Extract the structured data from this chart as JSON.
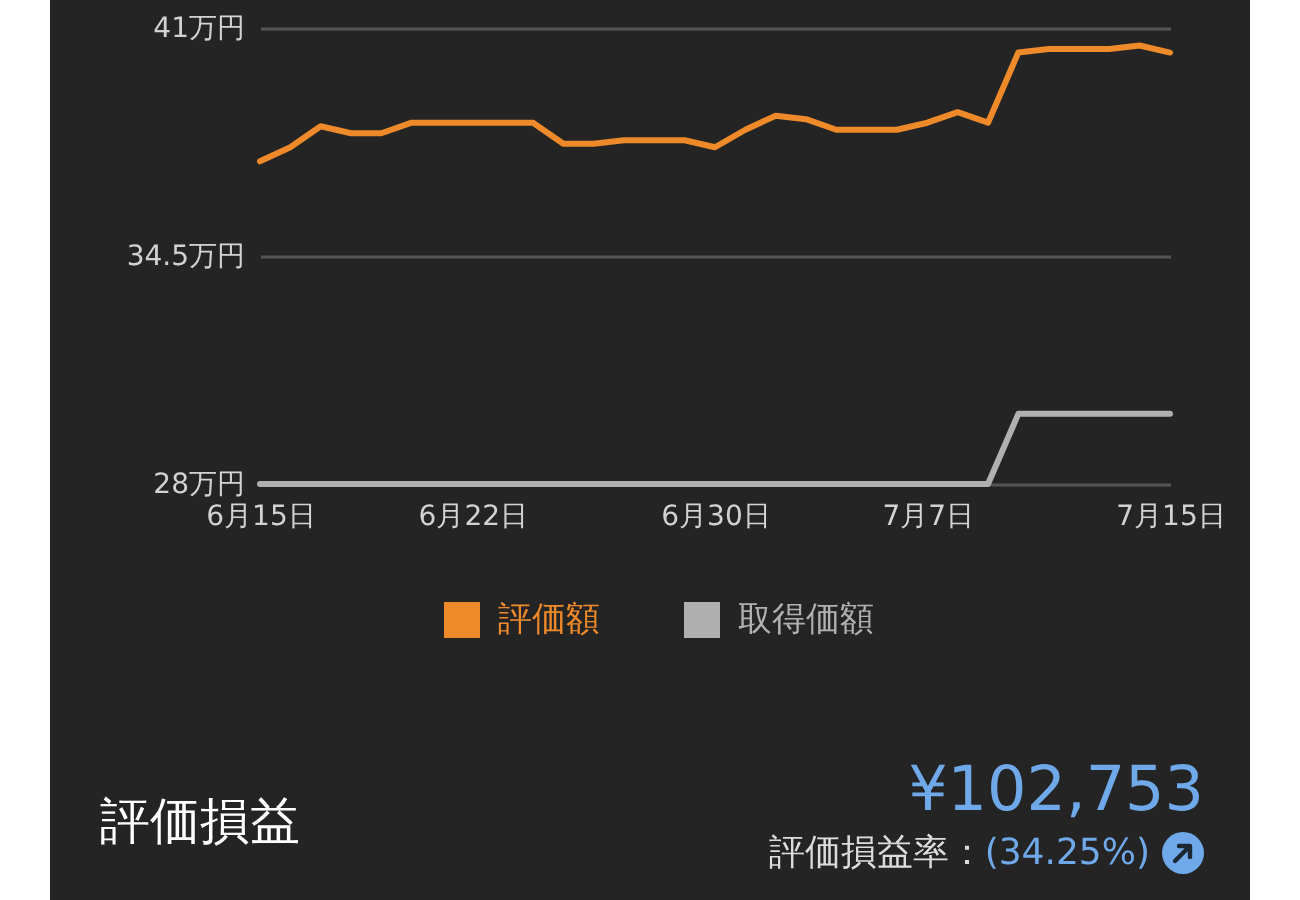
{
  "chart_data": {
    "type": "line",
    "x": [
      "--06-15",
      "--06-16",
      "--06-17",
      "--06-18",
      "--06-19",
      "--06-20",
      "--06-21",
      "--06-22",
      "--06-23",
      "--06-24",
      "--06-25",
      "--06-26",
      "--06-27",
      "--06-28",
      "--06-29",
      "--06-30",
      "--07-01",
      "--07-02",
      "--07-03",
      "--07-04",
      "--07-05",
      "--07-06",
      "--07-07",
      "--07-08",
      "--07-09",
      "--07-10",
      "--07-11",
      "--07-12",
      "--07-13",
      "--07-14",
      "--07-15"
    ],
    "series": [
      {
        "name": "評価額",
        "color": "#ef8a2a",
        "values": [
          37.2,
          37.6,
          38.2,
          38.0,
          38.0,
          38.3,
          38.3,
          38.3,
          38.3,
          38.3,
          37.7,
          37.7,
          37.8,
          37.8,
          37.8,
          37.6,
          38.1,
          38.5,
          38.4,
          38.1,
          38.1,
          38.1,
          38.3,
          38.6,
          38.3,
          40.3,
          40.4,
          40.4,
          40.4,
          40.5,
          40.3
        ]
      },
      {
        "name": "取得価額",
        "color": "#b0b0b0",
        "values": [
          28,
          28,
          28,
          28,
          28,
          28,
          28,
          28,
          28,
          28,
          28,
          28,
          28,
          28,
          28,
          28,
          28,
          28,
          28,
          28,
          28,
          28,
          28,
          28,
          28,
          30,
          30,
          30,
          30,
          30,
          30
        ]
      }
    ],
    "xlim": [
      "--06-15",
      "--07-15"
    ],
    "xticks": [
      {
        "value": "--06-15",
        "label": "6月15日"
      },
      {
        "value": "--06-22",
        "label": "6月22日"
      },
      {
        "value": "--06-30",
        "label": "6月30日"
      },
      {
        "value": "--07-07",
        "label": "7月7日"
      },
      {
        "value": "--07-15",
        "label": "7月15日"
      }
    ],
    "ylim": [
      28,
      41
    ],
    "yticks": [
      {
        "value": 28,
        "label": "28万円"
      },
      {
        "value": 34.5,
        "label": "34.5万円"
      },
      {
        "value": 41,
        "label": "41万円"
      }
    ],
    "grid": "y",
    "legend": "bottom",
    "marker": "none",
    "line_style": "solid",
    "annotations": [
      "評価損益",
      "¥102,753",
      "評価損益率：",
      "(34.25%)"
    ]
  }
}
